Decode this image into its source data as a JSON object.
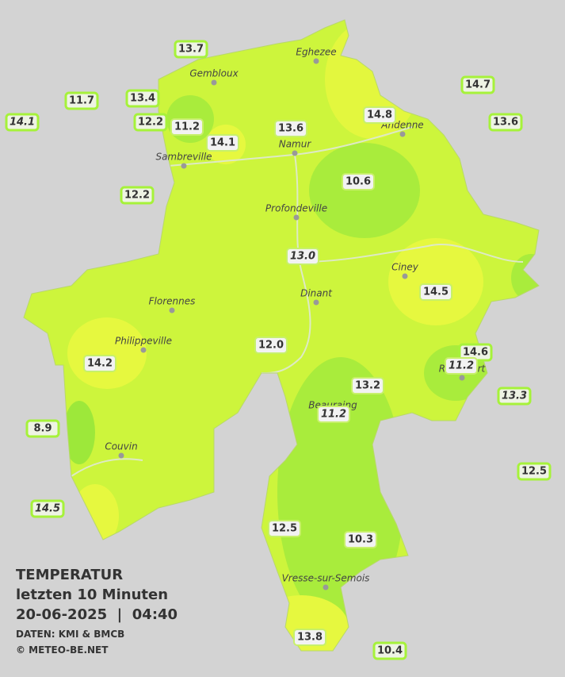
{
  "legend": {
    "title": "TEMPERATUR",
    "subtitle": "letzten 10 Minuten",
    "timestamp": "20-06-2025  |  04:40",
    "source": "DATEN: KMI & BMCB",
    "copyright": "© METEO-BE.NET"
  },
  "towns": [
    "Eghezee",
    "Gembloux",
    "Andenne",
    "Namur",
    "Sambreville",
    "Profondeville",
    "Ciney",
    "Florennes",
    "Dinant",
    "Philippeville",
    "Rochefort",
    "Beauraing",
    "Couvin",
    "Vresse-sur-Semois"
  ],
  "temperatures": [
    "13.7",
    "11.7",
    "13.4",
    "14.1",
    "12.2",
    "11.2",
    "14.1",
    "13.6",
    "14.8",
    "14.7",
    "13.6",
    "12.2",
    "10.6",
    "13.0",
    "14.5",
    "12.0",
    "14.6",
    "11.2",
    "14.2",
    "13.2",
    "13.3",
    "11.2",
    "8.9",
    "12.5",
    "14.5",
    "12.5",
    "10.3",
    "13.8",
    "10.4"
  ]
}
